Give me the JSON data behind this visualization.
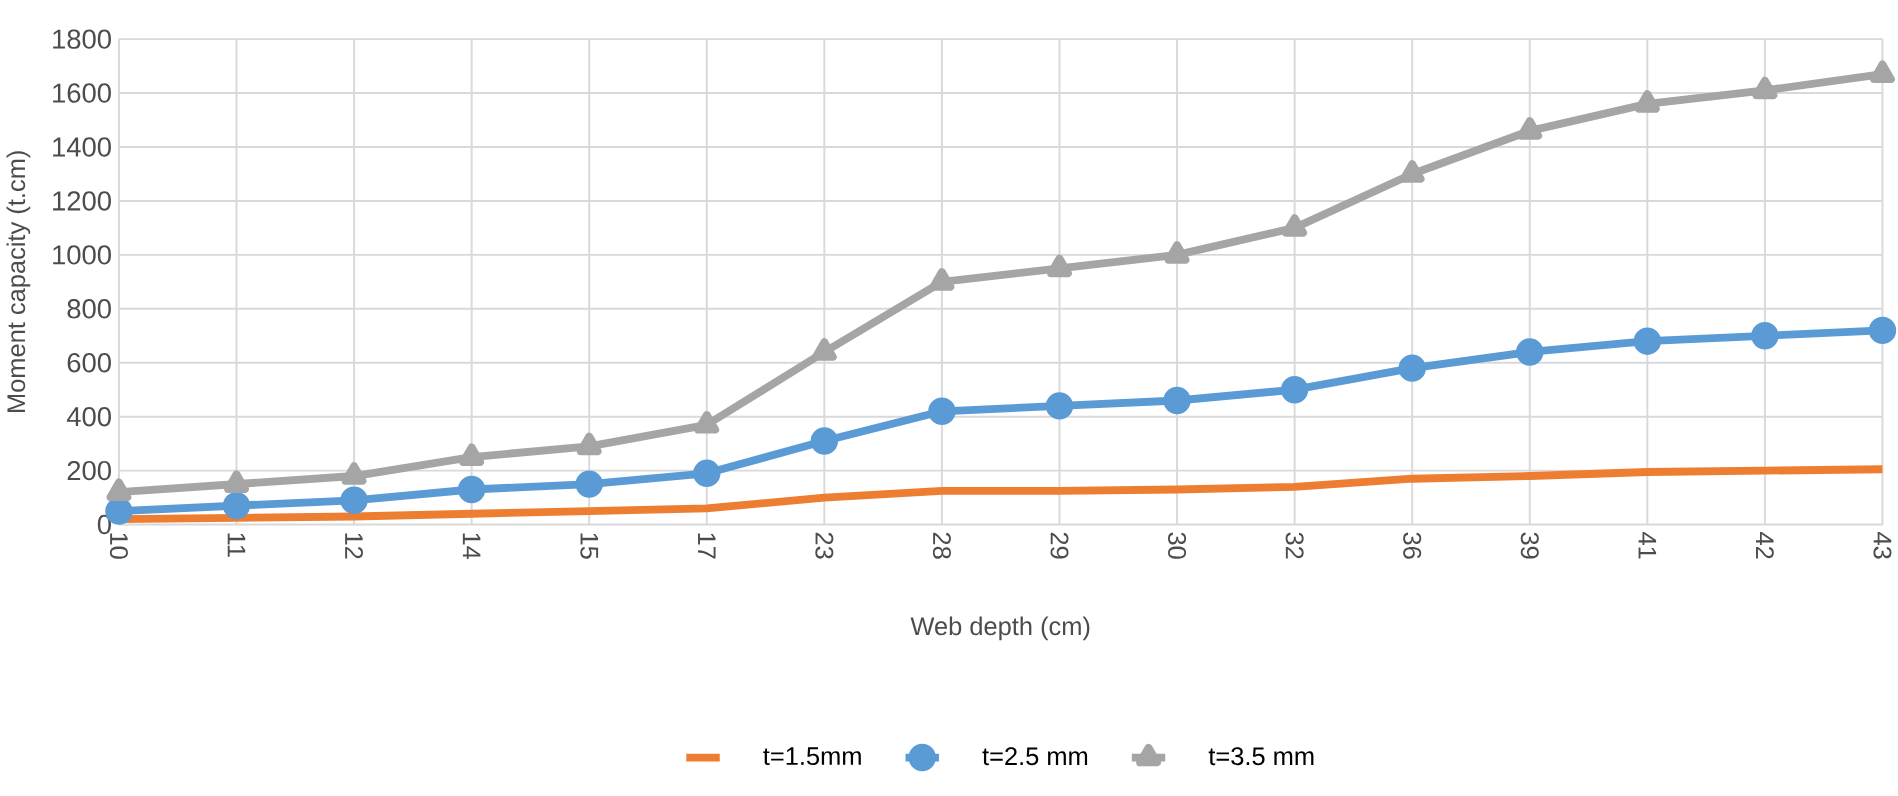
{
  "chart_data": {
    "type": "line",
    "xlabel": "Web depth (cm)",
    "ylabel": "Moment capacity (t.cm)",
    "categories": [
      "10",
      "11",
      "12",
      "14",
      "15",
      "17",
      "23",
      "28",
      "29",
      "30",
      "32",
      "36",
      "39",
      "41",
      "42",
      "43"
    ],
    "ylim": [
      0,
      1800
    ],
    "yticks": [
      0,
      200,
      400,
      600,
      800,
      1000,
      1200,
      1400,
      1600,
      1800
    ],
    "grid": true,
    "legend": "bottom",
    "line_style": "solid",
    "series": [
      {
        "name": "t=1.5mm",
        "color": "#ed7d31",
        "marker": "none",
        "values": [
          20,
          25,
          30,
          40,
          50,
          60,
          100,
          125,
          125,
          130,
          140,
          170,
          180,
          195,
          200,
          205
        ]
      },
      {
        "name": "t=2.5 mm",
        "color": "#5b9bd5",
        "marker": "circle",
        "values": [
          50,
          70,
          90,
          130,
          150,
          190,
          310,
          420,
          440,
          460,
          500,
          580,
          640,
          680,
          700,
          720
        ]
      },
      {
        "name": "t=3.5 mm",
        "color": "#a5a5a5",
        "marker": "triangle",
        "values": [
          120,
          150,
          180,
          250,
          290,
          370,
          640,
          900,
          950,
          1000,
          1100,
          1300,
          1460,
          1560,
          1610,
          1670
        ]
      }
    ]
  }
}
